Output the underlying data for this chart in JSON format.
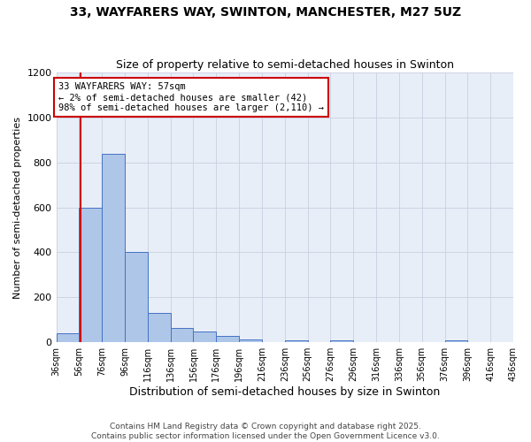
{
  "title_line1": "33, WAYFARERS WAY, SWINTON, MANCHESTER, M27 5UZ",
  "title_line2": "Size of property relative to semi-detached houses in Swinton",
  "xlabel": "Distribution of semi-detached houses by size in Swinton",
  "ylabel": "Number of semi-detached properties",
  "footnote": "Contains HM Land Registry data © Crown copyright and database right 2025.\nContains public sector information licensed under the Open Government Licence v3.0.",
  "bin_edges": [
    36,
    56,
    76,
    96,
    116,
    136,
    156,
    176,
    196,
    216,
    236,
    256,
    276,
    296,
    316,
    336,
    356,
    376,
    396,
    416,
    436
  ],
  "bar_heights": [
    42,
    600,
    840,
    400,
    130,
    65,
    48,
    30,
    12,
    0,
    10,
    0,
    8,
    0,
    0,
    0,
    0,
    10,
    0,
    0
  ],
  "bar_color": "#aec6e8",
  "bar_edge_color": "#4472c4",
  "grid_color": "#c8d0e0",
  "bg_color": "#e8eef8",
  "fig_bg_color": "#ffffff",
  "property_size": 57,
  "vline_color": "#cc0000",
  "annotation_text": "33 WAYFARERS WAY: 57sqm\n← 2% of semi-detached houses are smaller (42)\n98% of semi-detached houses are larger (2,110) →",
  "annotation_box_facecolor": "#ffffff",
  "annotation_box_edgecolor": "#cc0000",
  "ylim": [
    0,
    1200
  ],
  "yticks": [
    0,
    200,
    400,
    600,
    800,
    1000,
    1200
  ],
  "title1_fontsize": 10,
  "title2_fontsize": 9,
  "xlabel_fontsize": 9,
  "ylabel_fontsize": 8,
  "tick_fontsize": 8,
  "xtick_fontsize": 7,
  "annot_fontsize": 7.5,
  "footnote_fontsize": 6.5
}
